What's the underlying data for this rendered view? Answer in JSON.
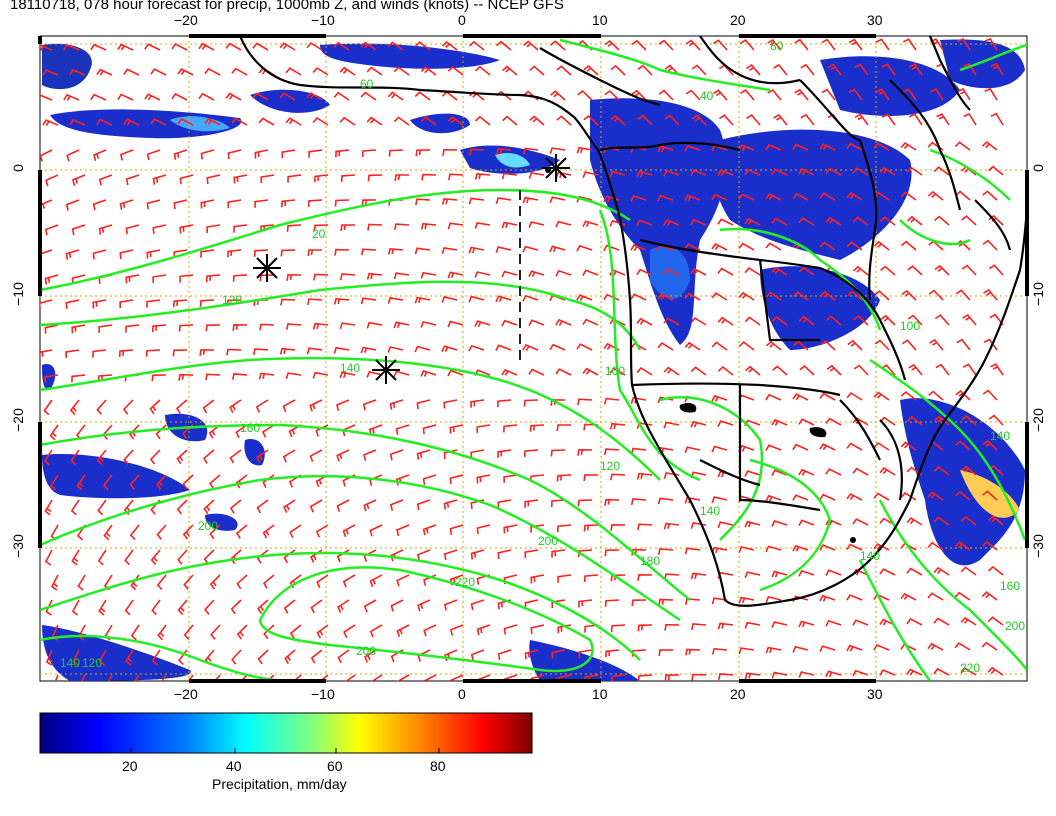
{
  "title": "18110718, 078 hour forecast for precip, 1000mb Z, and winds (knots) -- NCEP GFS",
  "stamp": "18110718",
  "axes": {
    "lon_ticks": [
      "−20",
      "−10",
      "0",
      "10",
      "20",
      "30"
    ],
    "lat_ticks": [
      "0",
      "−10",
      "−20",
      "−30"
    ],
    "lat_ticks_right": [
      "0",
      "−10",
      "−20",
      "−30"
    ]
  },
  "contour_labels": [
    "20",
    "40",
    "60",
    "80",
    "100",
    "120",
    "140",
    "160",
    "180",
    "200",
    "220"
  ],
  "colorbar": {
    "ticks": [
      "20",
      "40",
      "60",
      "80"
    ],
    "caption": "Precipitation, mm/day",
    "colors": [
      "#00007f",
      "#0000ff",
      "#007fff",
      "#00ffff",
      "#7fff7f",
      "#ffff00",
      "#ff7f00",
      "#ff0000",
      "#7f0000"
    ]
  },
  "colors": {
    "contour": "#22ee22",
    "barb": "#ff2020",
    "grid": "#ccaa00",
    "coast": "#000000",
    "stamp": "#ff00ff"
  },
  "markers": [
    {
      "name": "storm-marker-1"
    },
    {
      "name": "storm-marker-2"
    },
    {
      "name": "storm-marker-3"
    }
  ]
}
